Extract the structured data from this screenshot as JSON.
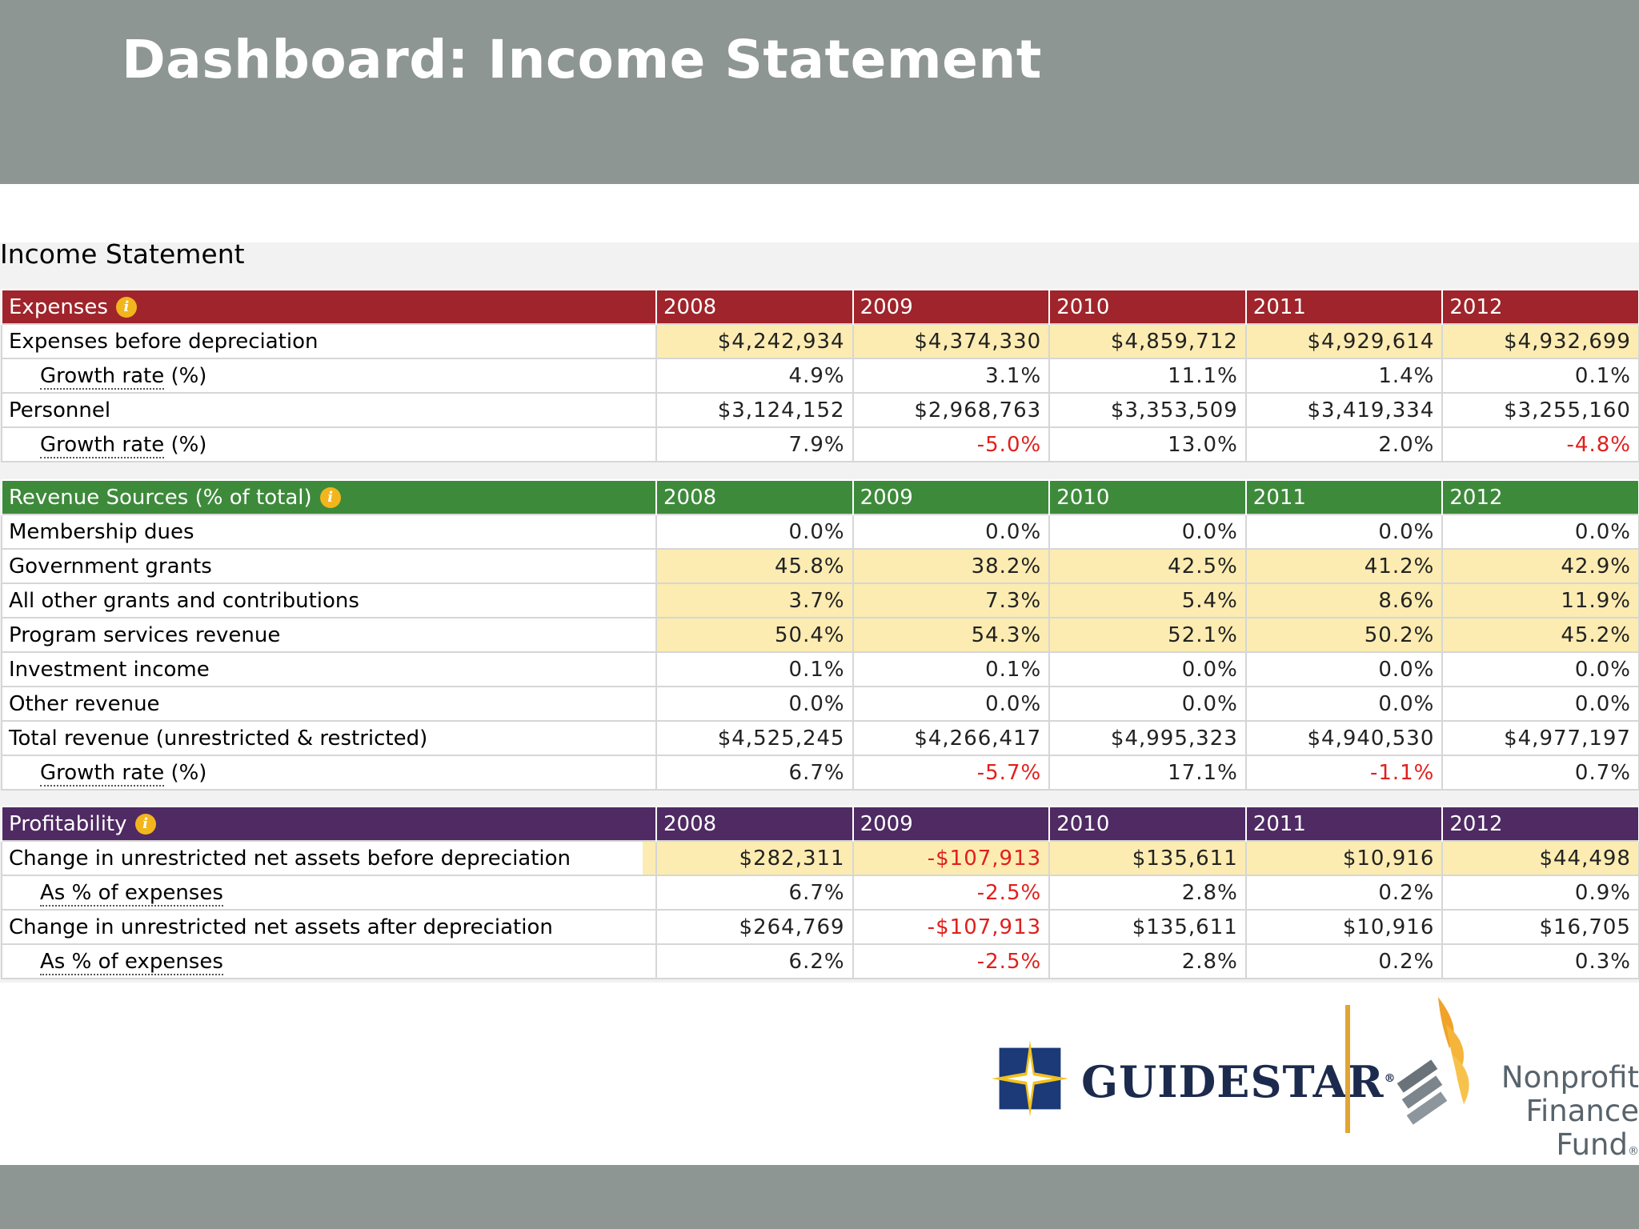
{
  "slide": {
    "title": "Dashboard: Income Statement"
  },
  "section": {
    "title": "Income Statement"
  },
  "years": [
    "2008",
    "2009",
    "2010",
    "2011",
    "2012"
  ],
  "expenses": {
    "header": "Expenses",
    "rows": [
      {
        "label": "Expenses before depreciation",
        "values": [
          "$4,242,934",
          "$4,374,330",
          "$4,859,712",
          "$4,929,614",
          "$4,932,699"
        ]
      },
      {
        "label": "Growth rate",
        "suffix": " (%)",
        "values": [
          "4.9%",
          "3.1%",
          "11.1%",
          "1.4%",
          "0.1%"
        ]
      },
      {
        "label": "Personnel",
        "values": [
          "$3,124,152",
          "$2,968,763",
          "$3,353,509",
          "$3,419,334",
          "$3,255,160"
        ]
      },
      {
        "label": "Growth rate",
        "suffix": " (%)",
        "values": [
          "7.9%",
          "-5.0%",
          "13.0%",
          "2.0%",
          "-4.8%"
        ]
      }
    ]
  },
  "revenue": {
    "header": "Revenue Sources (% of total)",
    "rows": [
      {
        "label": "Membership dues",
        "values": [
          "0.0%",
          "0.0%",
          "0.0%",
          "0.0%",
          "0.0%"
        ]
      },
      {
        "label": "Government grants",
        "values": [
          "45.8%",
          "38.2%",
          "42.5%",
          "41.2%",
          "42.9%"
        ]
      },
      {
        "label": "All other grants and contributions",
        "values": [
          "3.7%",
          "7.3%",
          "5.4%",
          "8.6%",
          "11.9%"
        ]
      },
      {
        "label": "Program services revenue",
        "values": [
          "50.4%",
          "54.3%",
          "52.1%",
          "50.2%",
          "45.2%"
        ]
      },
      {
        "label": "Investment income",
        "values": [
          "0.1%",
          "0.1%",
          "0.0%",
          "0.0%",
          "0.0%"
        ]
      },
      {
        "label": "Other revenue",
        "values": [
          "0.0%",
          "0.0%",
          "0.0%",
          "0.0%",
          "0.0%"
        ]
      },
      {
        "label": "Total revenue (unrestricted & restricted)",
        "values": [
          "$4,525,245",
          "$4,266,417",
          "$4,995,323",
          "$4,940,530",
          "$4,977,197"
        ]
      },
      {
        "label": "Growth rate",
        "suffix": " (%)",
        "values": [
          "6.7%",
          "-5.7%",
          "17.1%",
          "-1.1%",
          "0.7%"
        ]
      }
    ]
  },
  "profitability": {
    "header": "Profitability",
    "rows": [
      {
        "label": "Change in unrestricted net assets before depreciation",
        "values": [
          "$282,311",
          "-$107,913",
          "$135,611",
          "$10,916",
          "$44,498"
        ]
      },
      {
        "label": "As % of expenses",
        "values": [
          "6.7%",
          "-2.5%",
          "2.8%",
          "0.2%",
          "0.9%"
        ]
      },
      {
        "label": "Change in unrestricted net assets after depreciation",
        "values": [
          "$264,769",
          "-$107,913",
          "$135,611",
          "$10,916",
          "$16,705"
        ]
      },
      {
        "label": "As % of expenses",
        "values": [
          "6.2%",
          "-2.5%",
          "2.8%",
          "0.2%",
          "0.3%"
        ]
      }
    ]
  },
  "info_icon": "info-icon",
  "logos": {
    "guidestar": {
      "text": "GUIDESTAR",
      "mark": "®"
    },
    "nff": {
      "line1": "Nonprofit",
      "line2": "Finance Fund",
      "mark": "®"
    }
  },
  "colors": {
    "band": "#8e9693",
    "expenses_header": "#a0242b",
    "revenue_header": "#3e8a3b",
    "profitability_header": "#4f2a63",
    "highlight": "#fcecb2",
    "negative": "#e0201c"
  }
}
